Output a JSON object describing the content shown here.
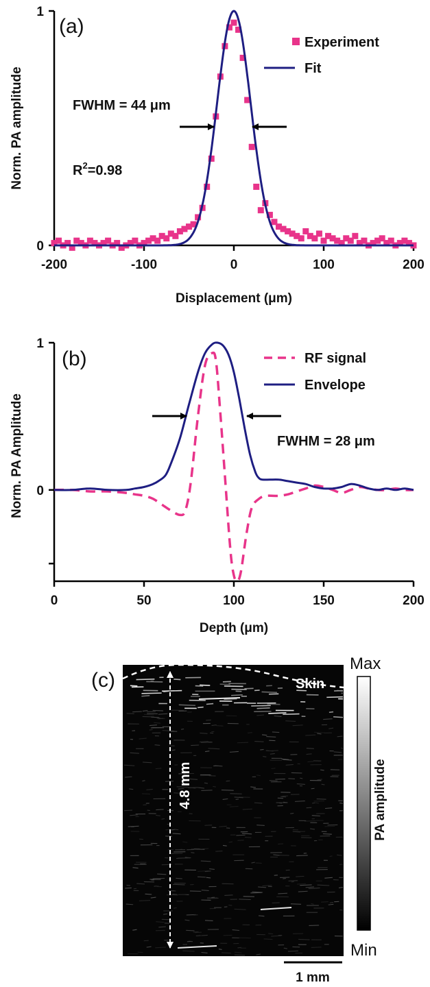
{
  "chart_data": [
    {
      "panel": "(a)",
      "type": "scatter",
      "xlabel": "Displacement (μm)",
      "ylabel": "Norm. PA amplitude",
      "xlim": [
        -200,
        200
      ],
      "ylim": [
        0,
        1
      ],
      "xticks": [
        "-200",
        "-100",
        "0",
        "100",
        "200"
      ],
      "yticks": [
        "0",
        "1"
      ],
      "legend_placement": "top-right",
      "annotations": {
        "fwhm": "FWHM = 44 μm",
        "r2_base": "R",
        "r2_sup": "2",
        "r2_val": "=0.98"
      },
      "series": [
        {
          "name": "Experiment",
          "style": "markers",
          "color": "#e8348a",
          "x": [
            -200,
            -195,
            -190,
            -185,
            -180,
            -175,
            -170,
            -165,
            -160,
            -155,
            -150,
            -145,
            -140,
            -135,
            -130,
            -125,
            -120,
            -115,
            -110,
            -105,
            -100,
            -95,
            -90,
            -85,
            -80,
            -75,
            -70,
            -65,
            -60,
            -55,
            -50,
            -45,
            -40,
            -35,
            -30,
            -25,
            -20,
            -15,
            -10,
            -5,
            0,
            5,
            10,
            15,
            20,
            25,
            30,
            35,
            40,
            45,
            50,
            55,
            60,
            65,
            70,
            75,
            80,
            85,
            90,
            95,
            100,
            105,
            110,
            115,
            120,
            125,
            130,
            135,
            140,
            145,
            150,
            155,
            160,
            165,
            170,
            175,
            180,
            185,
            190,
            195,
            200
          ],
          "y": [
            0.01,
            0.02,
            0.0,
            0.01,
            -0.01,
            0.02,
            0.01,
            0.0,
            0.02,
            0.01,
            0.0,
            0.01,
            0.02,
            0.0,
            0.01,
            -0.01,
            0.0,
            0.01,
            0.02,
            0.0,
            0.01,
            0.02,
            0.03,
            0.02,
            0.04,
            0.03,
            0.05,
            0.04,
            0.06,
            0.07,
            0.08,
            0.09,
            0.12,
            0.16,
            0.25,
            0.37,
            0.55,
            0.72,
            0.85,
            0.93,
            0.95,
            0.92,
            0.8,
            0.62,
            0.42,
            0.25,
            0.15,
            0.18,
            0.13,
            0.1,
            0.08,
            0.07,
            0.06,
            0.05,
            0.04,
            0.03,
            0.06,
            0.04,
            0.03,
            0.05,
            0.02,
            0.04,
            0.03,
            0.02,
            0.01,
            0.03,
            0.02,
            0.04,
            0.01,
            0.02,
            0.0,
            0.01,
            0.02,
            0.03,
            0.01,
            0.02,
            0.0,
            0.01,
            0.02,
            0.01,
            0.0
          ]
        },
        {
          "name": "Fit",
          "style": "line",
          "color": "#1e1e82",
          "model": "gaussian",
          "center": 0,
          "fwhm": 44,
          "amplitude": 1
        }
      ]
    },
    {
      "panel": "(b)",
      "type": "line",
      "xlabel": "Depth (μm)",
      "ylabel": "Norm. PA Amplitude",
      "xlim": [
        0,
        200
      ],
      "ylim": [
        -0.62,
        1
      ],
      "xticks": [
        "0",
        "50",
        "100",
        "150",
        "200"
      ],
      "yticks": [
        "0",
        "1"
      ],
      "legend_placement": "top-right",
      "annotations": {
        "fwhm": "FWHM = 28 μm"
      },
      "series": [
        {
          "name": "RF signal",
          "style": "dashed",
          "color": "#e8348a",
          "x": [
            0,
            10,
            20,
            30,
            40,
            45,
            50,
            55,
            60,
            65,
            70,
            73,
            76,
            80,
            84,
            88,
            90,
            92,
            95,
            98,
            100,
            102,
            104,
            107,
            110,
            114,
            118,
            125,
            130,
            135,
            140,
            145,
            150,
            155,
            160,
            165,
            170,
            175,
            180,
            185,
            190,
            195,
            200
          ],
          "y": [
            0,
            0,
            -0.01,
            -0.01,
            -0.02,
            -0.03,
            -0.04,
            -0.06,
            -0.1,
            -0.14,
            -0.17,
            -0.14,
            0.05,
            0.5,
            0.85,
            0.93,
            0.88,
            0.6,
            0.1,
            -0.4,
            -0.58,
            -0.62,
            -0.55,
            -0.3,
            -0.12,
            -0.06,
            -0.04,
            -0.04,
            -0.03,
            -0.01,
            0.01,
            0.03,
            0.02,
            0.0,
            -0.02,
            0.0,
            0.02,
            0.01,
            0.0,
            0.0,
            0.01,
            0.0,
            0.0
          ]
        },
        {
          "name": "Envelope",
          "style": "line",
          "color": "#1e1e82",
          "x": [
            0,
            10,
            20,
            30,
            40,
            45,
            50,
            55,
            58,
            62,
            65,
            70,
            75,
            80,
            84,
            88,
            91,
            94,
            97,
            100,
            103,
            106,
            109,
            112,
            114,
            116,
            120,
            125,
            130,
            135,
            140,
            145,
            150,
            155,
            160,
            165,
            170,
            175,
            180,
            185,
            190,
            195,
            200
          ],
          "y": [
            0,
            0.0,
            0.01,
            0.0,
            0.0,
            0.01,
            0.02,
            0.04,
            0.06,
            0.1,
            0.18,
            0.35,
            0.58,
            0.8,
            0.93,
            0.99,
            1.0,
            0.98,
            0.92,
            0.8,
            0.62,
            0.42,
            0.24,
            0.12,
            0.08,
            0.07,
            0.07,
            0.07,
            0.06,
            0.05,
            0.04,
            0.02,
            0.01,
            0.01,
            0.02,
            0.04,
            0.03,
            0.01,
            0.0,
            0.01,
            0.0,
            0.01,
            0.0
          ]
        }
      ]
    },
    {
      "panel": "(c)",
      "type": "heatmap",
      "annotations": {
        "skin": "Skin",
        "depth": "4.8 mm",
        "scale_bar": "1 mm"
      },
      "colorbar": {
        "label": "PA amplitude",
        "max": "Max",
        "min": "Min"
      }
    }
  ]
}
